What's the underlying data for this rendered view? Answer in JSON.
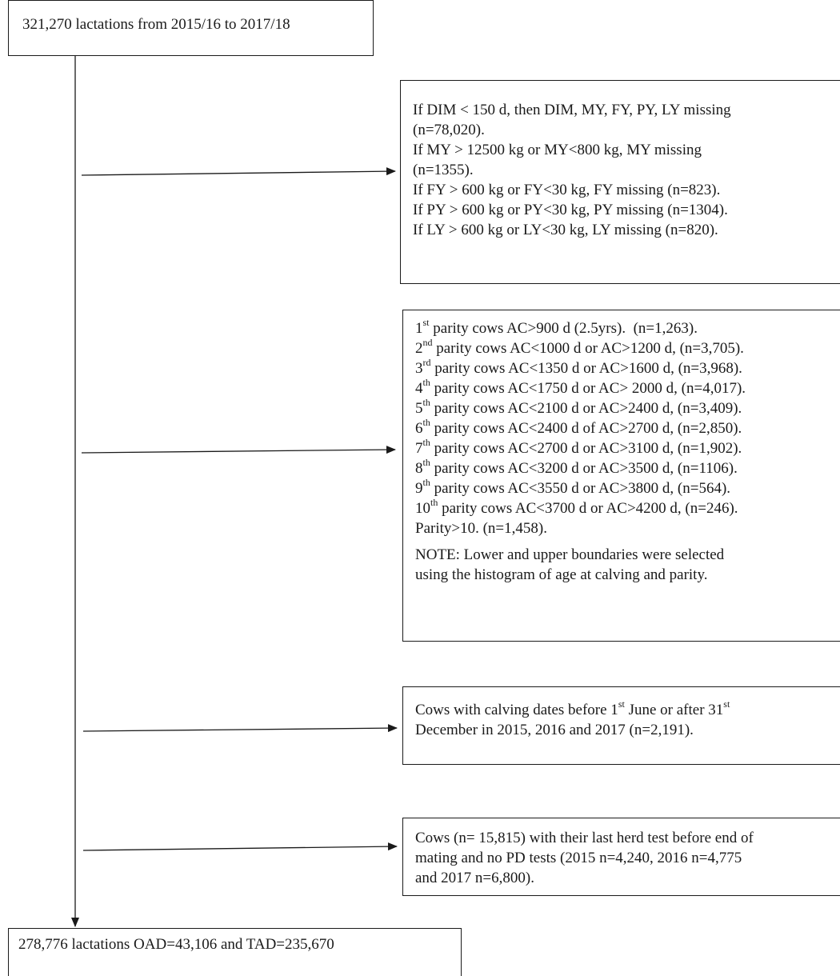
{
  "start": {
    "text": "321,270 lactations from 2015/16 to 2017/18"
  },
  "end": {
    "text": "278,776 lactations OAD=43,106 and TAD=235,670"
  },
  "yield_exclusions": {
    "lines": [
      "If DIM < 150 d, then DIM, MY, FY, PY, LY missing",
      "(n=78,020).",
      "If MY > 12500 kg or MY<800 kg, MY missing",
      "(n=1355).",
      "If FY > 600 kg or FY<30 kg, FY missing (n=823).",
      "If PY > 600 kg or PY<30 kg, PY missing (n=1304).",
      "If LY > 600 kg or LY<30 kg, LY missing (n=820)."
    ]
  },
  "age_exclusions": {
    "rows": [
      {
        "num": "1",
        "sup": "st",
        "rest": " parity cows AC>900 d (2.5yrs).  (n=1,263)."
      },
      {
        "num": "2",
        "sup": "nd",
        "rest": " parity cows AC<1000 d or AC>1200 d, (n=3,705)."
      },
      {
        "num": "3",
        "sup": "rd",
        "rest": " parity cows AC<1350 d or AC>1600 d, (n=3,968)."
      },
      {
        "num": "4",
        "sup": "th",
        "rest": " parity cows AC<1750 d or AC> 2000 d, (n=4,017)."
      },
      {
        "num": "5",
        "sup": "th",
        "rest": " parity cows AC<2100 d or AC>2400 d, (n=3,409)."
      },
      {
        "num": "6",
        "sup": "th",
        "rest": " parity cows AC<2400 d of AC>2700 d, (n=2,850)."
      },
      {
        "num": "7",
        "sup": "th",
        "rest": " parity cows AC<2700 d or AC>3100 d, (n=1,902)."
      },
      {
        "num": "8",
        "sup": "th",
        "rest": " parity cows AC<3200 d or AC>3500 d, (n=1106)."
      },
      {
        "num": "9",
        "sup": "th",
        "rest": " parity cows AC<3550 d or AC>3800 d, (n=564)."
      },
      {
        "num": "10",
        "sup": "th",
        "rest": " parity cows AC<3700 d or AC>4200 d, (n=246)."
      }
    ],
    "last_line": "Parity>10. (n=1,458).",
    "note": [
      "NOTE: Lower and upper boundaries were selected",
      "using the histogram of age at calving and parity."
    ]
  },
  "calving_exclusions": {
    "l1_a": "Cows with calving dates before 1",
    "l1_sup1": "st",
    "l1_b": " June or after 31",
    "l1_sup2": "st",
    "l2": "December in 2015, 2016 and 2017 (n=2,191)."
  },
  "herd_test_exclusions": {
    "lines": [
      "Cows (n= 15,815) with their last herd test before end of",
      "mating and no PD tests (2015 n=4,240, 2016 n=4,775",
      "and 2017 n=6,800)."
    ]
  },
  "style": {
    "line_color": "#1a1a1a",
    "background": "#ffffff"
  }
}
